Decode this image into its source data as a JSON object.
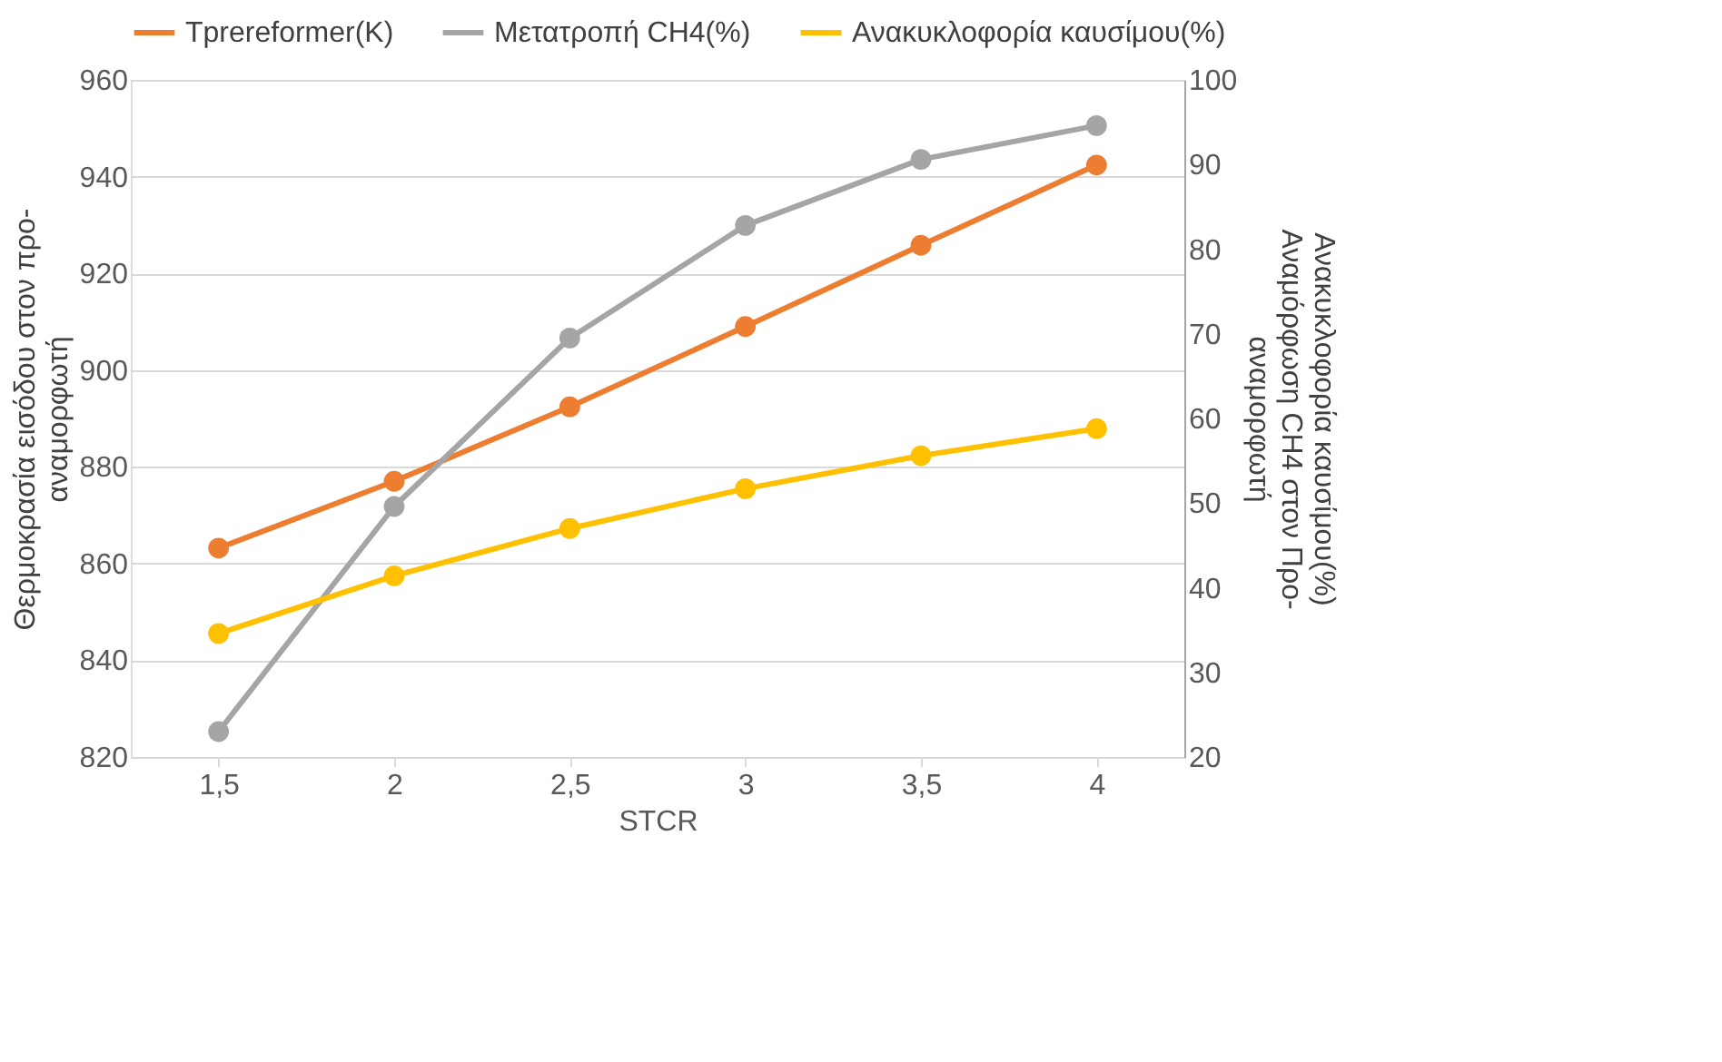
{
  "chart_data": {
    "type": "line",
    "xlabel": "STCR",
    "ylabel": "Θερμοκρασία εισόδου στον προ-\nαναμορφωτή",
    "y2label": "Ανακυκλοφορία καυσίμου(%)\nΑναμόρφωση CH4 στον Προ-\nαναμορφωτή",
    "categories": [
      "1,5",
      "2",
      "2,5",
      "3",
      "3,5",
      "4"
    ],
    "series": [
      {
        "name": "Tprereformer(K)",
        "color": "#ed7d31",
        "values": [
          863.2,
          877,
          892.4,
          909,
          925.8,
          942.4
        ]
      },
      {
        "name": "Μετατροπή CH4(%)",
        "color": "#a5a5a5",
        "axis": "y2",
        "values": [
          23,
          49.6,
          69.5,
          82.8,
          90.6,
          94.6
        ]
      },
      {
        "name": "Ανακυκλοφορία καυσίμου(%)",
        "color": "#ffc000",
        "axis": "y2",
        "values": [
          34.6,
          41.4,
          47,
          51.7,
          55.6,
          58.8
        ]
      }
    ],
    "ylim": [
      820,
      960
    ],
    "yticks": [
      820,
      840,
      860,
      880,
      900,
      920,
      940,
      960
    ],
    "y2lim": [
      20,
      100
    ],
    "y2ticks": [
      20,
      30,
      40,
      50,
      60,
      70,
      80,
      90,
      100
    ],
    "grid": "y",
    "legend": "top",
    "marker": "circle",
    "line_style": "solid"
  }
}
